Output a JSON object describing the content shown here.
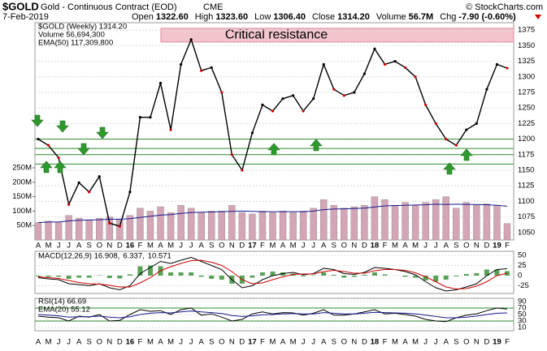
{
  "header": {
    "symbol": "$GOLD",
    "name": "Gold - Continuous Contract (EOD)",
    "exchange": "CME",
    "credit": "© StockCharts.com",
    "date": "7-Feb-2019",
    "quote": [
      {
        "label": "Open",
        "value": "1322.60"
      },
      {
        "label": "High",
        "value": "1323.60"
      },
      {
        "label": "Low",
        "value": "1306.40"
      },
      {
        "label": "Close",
        "value": "1314.20"
      },
      {
        "label": "Volume",
        "value": "56.7M"
      },
      {
        "label": "Chg",
        "value": "-7.90 (-0.60%)"
      }
    ]
  },
  "chart_data": [
    {
      "type": "price",
      "categories": [
        "A",
        "M",
        "J",
        "J",
        "A",
        "S",
        "O",
        "N",
        "D",
        "16",
        "F",
        "M",
        "A",
        "M",
        "J",
        "J",
        "A",
        "S",
        "O",
        "N",
        "D",
        "17",
        "F",
        "M",
        "A",
        "M",
        "J",
        "J",
        "A",
        "S",
        "O",
        "N",
        "D",
        "18",
        "F",
        "M",
        "A",
        "M",
        "J",
        "J",
        "A",
        "S",
        "O",
        "N",
        "D",
        "19",
        "F"
      ],
      "series": [
        {
          "name": "$GOLD (Weekly) 1314.20",
          "color": "#000000",
          "values": [
            1200,
            1190,
            1170,
            1095,
            1130,
            1115,
            1140,
            1065,
            1060,
            1115,
            1235,
            1235,
            1290,
            1215,
            1320,
            1360,
            1310,
            1315,
            1275,
            1175,
            1150,
            1210,
            1255,
            1245,
            1265,
            1270,
            1245,
            1265,
            1320,
            1280,
            1270,
            1275,
            1305,
            1345,
            1320,
            1325,
            1315,
            1300,
            1255,
            1225,
            1200,
            1190,
            1215,
            1225,
            1280,
            1320,
            1314
          ]
        },
        {
          "name": "Volume 56,694,300",
          "type": "bar",
          "axis": "y2",
          "color": "#d4a5b6",
          "values": [
            60,
            65,
            60,
            85,
            75,
            70,
            75,
            80,
            70,
            85,
            110,
            100,
            115,
            95,
            120,
            110,
            95,
            100,
            100,
            120,
            95,
            90,
            100,
            95,
            100,
            95,
            100,
            110,
            140,
            120,
            110,
            115,
            120,
            150,
            140,
            120,
            130,
            120,
            130,
            140,
            150,
            110,
            130,
            120,
            125,
            120,
            57
          ]
        },
        {
          "name": "EMA(50) 117,309,800",
          "axis": "y2",
          "color": "#1a1a8c",
          "values": [
            60,
            62,
            62,
            66,
            68,
            69,
            70,
            72,
            72,
            74,
            78,
            82,
            86,
            88,
            92,
            95,
            96,
            97,
            98,
            99,
            100,
            99,
            98,
            98,
            98,
            98,
            98,
            100,
            105,
            107,
            108,
            109,
            110,
            114,
            118,
            119,
            120,
            121,
            122,
            124,
            123,
            124,
            123,
            123,
            122,
            120,
            117
          ]
        }
      ],
      "ylim": [
        1038,
        1387
      ],
      "yticks": [
        1050,
        1075,
        1100,
        1125,
        1150,
        1175,
        1200,
        1225,
        1250,
        1275,
        1300,
        1325,
        1350,
        1375
      ],
      "y2lim": [
        0,
        753
      ],
      "y2ticks": [
        {
          "value": 50,
          "label": "50M"
        },
        {
          "value": 100,
          "label": "100M"
        },
        {
          "value": 150,
          "label": "150M"
        },
        {
          "value": 200,
          "label": "200M"
        },
        {
          "value": 250,
          "label": "250M"
        }
      ],
      "support_levels": [
        1200,
        1185,
        1175,
        1160
      ],
      "support_color": "#2e8b2e",
      "resistance_band": [
        1356,
        1378
      ],
      "resistance_color": "#f2c4cc",
      "annotation": "Critical resistance",
      "grid": true
    },
    {
      "type": "macd",
      "series": [
        {
          "name": "MACD(12,26,9) 16.908,",
          "color": "#000000",
          "values": [
            -5,
            -8,
            -10,
            -20,
            -22,
            -25,
            -20,
            -30,
            -35,
            -25,
            5,
            20,
            35,
            30,
            38,
            45,
            35,
            25,
            15,
            -10,
            -30,
            -25,
            -10,
            0,
            5,
            8,
            2,
            5,
            18,
            15,
            5,
            3,
            8,
            20,
            18,
            15,
            10,
            2,
            -15,
            -30,
            -38,
            -35,
            -28,
            -20,
            0,
            15,
            17
          ]
        },
        {
          "name": "6.337,",
          "color": "#cc0000",
          "values": [
            -3,
            -5,
            -7,
            -12,
            -17,
            -20,
            -21,
            -24,
            -28,
            -28,
            -18,
            -5,
            12,
            22,
            30,
            37,
            38,
            33,
            25,
            10,
            -10,
            -20,
            -18,
            -10,
            -3,
            3,
            4,
            4,
            10,
            13,
            10,
            6,
            6,
            12,
            15,
            15,
            13,
            7,
            -3,
            -15,
            -28,
            -33,
            -32,
            -26,
            -15,
            0,
            6
          ]
        },
        {
          "name": "10.571",
          "type": "bar",
          "color": "#2e8b2e",
          "values": [
            -2,
            -3,
            -3,
            -8,
            -5,
            -5,
            1,
            -6,
            -7,
            3,
            23,
            25,
            23,
            8,
            8,
            8,
            -3,
            -8,
            -10,
            -20,
            -20,
            -5,
            8,
            10,
            8,
            5,
            -2,
            1,
            8,
            2,
            -5,
            -3,
            2,
            8,
            3,
            0,
            -3,
            -5,
            -12,
            -15,
            -10,
            -2,
            4,
            6,
            15,
            15,
            11
          ]
        }
      ],
      "ylim": [
        -44,
        60
      ],
      "yticks": [
        50,
        25,
        0,
        -25
      ],
      "grid": true
    },
    {
      "type": "rsi",
      "series": [
        {
          "name": "RSI(14) 66.69",
          "color": "#000000",
          "values": [
            45,
            42,
            40,
            30,
            45,
            42,
            50,
            30,
            32,
            50,
            65,
            60,
            62,
            50,
            65,
            70,
            48,
            52,
            42,
            30,
            35,
            52,
            58,
            52,
            56,
            55,
            48,
            54,
            65,
            48,
            48,
            52,
            58,
            65,
            52,
            54,
            50,
            45,
            35,
            30,
            28,
            40,
            48,
            52,
            62,
            70,
            67
          ]
        },
        {
          "name": "EMA(20) 55.12",
          "color": "#1a1a8c",
          "values": [
            50,
            48,
            46,
            42,
            43,
            43,
            45,
            42,
            40,
            43,
            50,
            54,
            56,
            55,
            58,
            61,
            58,
            56,
            53,
            47,
            44,
            46,
            49,
            50,
            52,
            53,
            52,
            52,
            56,
            54,
            52,
            52,
            54,
            57,
            56,
            55,
            54,
            52,
            48,
            44,
            40,
            40,
            42,
            45,
            50,
            54,
            55
          ]
        }
      ],
      "ylim": [
        0,
        100
      ],
      "yticks": [
        90,
        70,
        50,
        30,
        10
      ],
      "reference_lines": [
        70,
        30
      ],
      "reference_color": "#2e8b2e",
      "grid": true
    }
  ]
}
